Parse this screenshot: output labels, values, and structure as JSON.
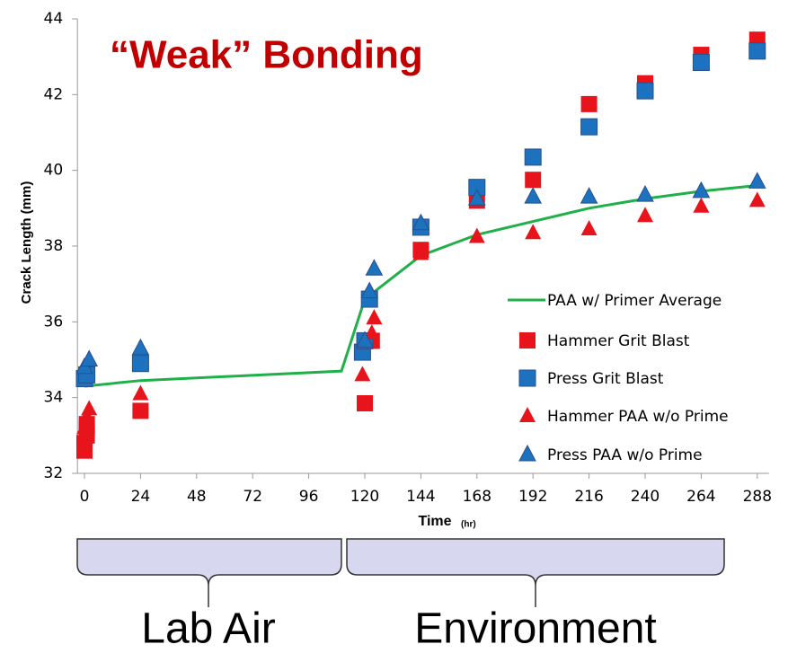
{
  "chart_data": {
    "type": "scatter",
    "title": "“Weak” Bonding",
    "x_label": "Time",
    "x_label_unit": "(hr)",
    "y_label": "Crack Length (mm)",
    "xlim": [
      -3,
      293
    ],
    "ylim": [
      32,
      44
    ],
    "xticks": [
      0,
      24,
      48,
      72,
      96,
      120,
      144,
      168,
      192,
      216,
      240,
      264,
      288
    ],
    "yticks": [
      32,
      34,
      36,
      38,
      40,
      42,
      44
    ],
    "grid": false,
    "legend": "right",
    "series": [
      {
        "name": "PAA w/ Primer Average",
        "color": "#1fb04a",
        "marker": "line",
        "x": [
          0,
          24,
          110,
          120,
          144,
          168,
          192,
          216,
          240,
          264,
          288
        ],
        "values": [
          34.3,
          34.45,
          34.7,
          36.6,
          37.75,
          38.3,
          38.65,
          39.0,
          39.25,
          39.45,
          39.6
        ]
      },
      {
        "name": "Hammer Grit Blast",
        "color": "#e8141c",
        "marker": "square",
        "x": [
          0,
          0,
          1,
          1,
          1,
          24,
          120,
          123,
          144,
          168,
          192,
          216,
          240,
          264,
          288
        ],
        "values": [
          32.6,
          32.8,
          33.0,
          33.2,
          33.3,
          33.65,
          33.85,
          35.5,
          37.9,
          39.2,
          39.75,
          41.75,
          42.3,
          43.05,
          43.45
        ]
      },
      {
        "name": "Press Grit Blast",
        "color": "#1d72c0",
        "marker": "square",
        "x": [
          0,
          1,
          24,
          119,
          120,
          122,
          144,
          168,
          192,
          216,
          240,
          264,
          288
        ],
        "values": [
          34.5,
          34.6,
          34.9,
          35.2,
          35.5,
          36.6,
          38.5,
          39.55,
          40.35,
          41.15,
          42.1,
          42.85,
          43.15
        ]
      },
      {
        "name": "Hammer PAA w/o Prime",
        "color": "#e8141c",
        "marker": "triangle",
        "x": [
          0,
          1,
          2,
          24,
          119,
          123,
          124,
          144,
          168,
          192,
          216,
          240,
          264,
          288
        ],
        "values": [
          33.2,
          33.5,
          33.7,
          34.1,
          34.6,
          35.7,
          36.1,
          37.8,
          38.25,
          38.35,
          38.45,
          38.8,
          39.05,
          39.2
        ]
      },
      {
        "name": "Press PAA w/o Prime",
        "color": "#1d72c0",
        "marker": "triangle",
        "x": [
          0,
          2,
          24,
          120,
          122,
          124,
          144,
          168,
          192,
          216,
          240,
          264,
          288
        ],
        "values": [
          34.8,
          35.0,
          35.3,
          35.5,
          36.8,
          37.4,
          38.6,
          39.25,
          39.3,
          39.3,
          39.35,
          39.45,
          39.7
        ]
      }
    ],
    "annotations": [
      "Lab Air",
      "Environment"
    ]
  }
}
